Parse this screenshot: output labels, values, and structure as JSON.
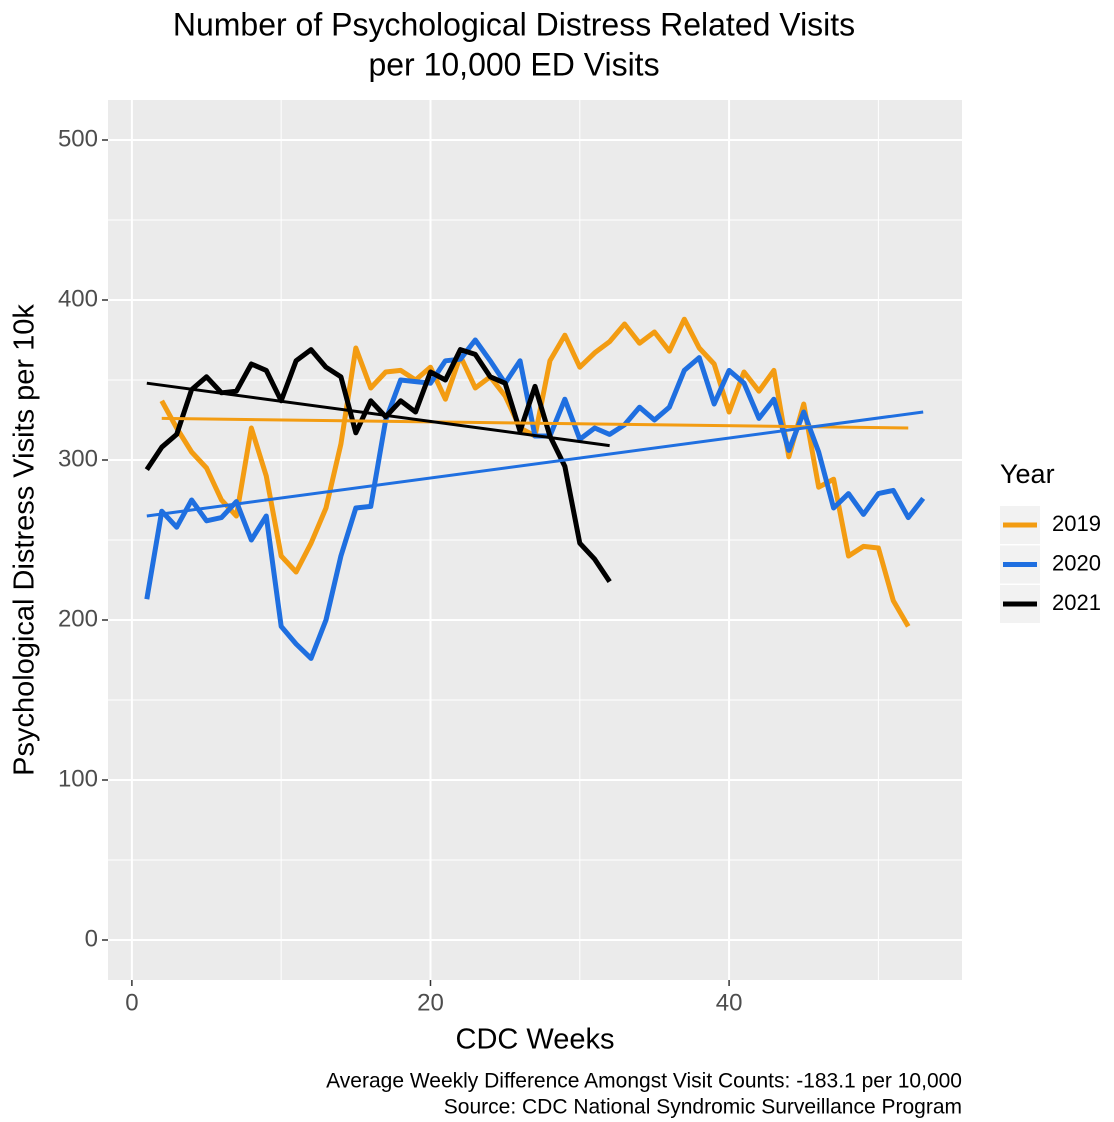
{
  "chart_data": {
    "type": "line",
    "title": [
      "Number of Psychological Distress Related Visits",
      "per 10,000 ED Visits"
    ],
    "x_label": "CDC Weeks",
    "y_label": "Psychological Distress Visits per 10k",
    "caption": [
      "Average Weekly Difference Amongst Visit Counts: -183.1 per 10,000",
      "Source: CDC National Syndromic Surveillance Program"
    ],
    "legend_title": "Year",
    "legend_position": "right",
    "grid": true,
    "xlim": [
      -1.6,
      55.6
    ],
    "xticks": [
      0,
      20,
      40
    ],
    "ylim": [
      -25,
      525
    ],
    "yticks": [
      0,
      100,
      200,
      300,
      400,
      500
    ],
    "x": [
      1,
      2,
      3,
      4,
      5,
      6,
      7,
      8,
      9,
      10,
      11,
      12,
      13,
      14,
      15,
      16,
      17,
      18,
      19,
      20,
      21,
      22,
      23,
      24,
      25,
      26,
      27,
      28,
      29,
      30,
      31,
      32,
      33,
      34,
      35,
      36,
      37,
      38,
      39,
      40,
      41,
      42,
      43,
      44,
      45,
      46,
      47,
      48,
      49,
      50,
      51,
      52,
      53
    ],
    "series": [
      {
        "name": "2019",
        "color": "#f39c12",
        "values": [
          null,
          337,
          320,
          305,
          295,
          275,
          265,
          320,
          290,
          240,
          230,
          248,
          270,
          310,
          370,
          345,
          355,
          356,
          350,
          358,
          338,
          365,
          345,
          352,
          340,
          320,
          315,
          362,
          378,
          358,
          367,
          374,
          385,
          373,
          380,
          368,
          388,
          370,
          360,
          330,
          355,
          343,
          356,
          302,
          335,
          283,
          288,
          240,
          246,
          245,
          212,
          196,
          null
        ],
        "trend": {
          "x": [
            2,
            52
          ],
          "values": [
            326,
            320
          ]
        }
      },
      {
        "name": "2020",
        "color": "#1f6fe0",
        "values": [
          213,
          268,
          258,
          275,
          262,
          264,
          274,
          250,
          265,
          196,
          185,
          176,
          200,
          240,
          270,
          271,
          325,
          350,
          349,
          348,
          362,
          363,
          375,
          362,
          348,
          362,
          315,
          315,
          338,
          313,
          320,
          316,
          322,
          333,
          325,
          333,
          356,
          364,
          335,
          356,
          348,
          326,
          338,
          306,
          330,
          305,
          270,
          279,
          266,
          279,
          281,
          264,
          276
        ],
        "trend": {
          "x": [
            1,
            53
          ],
          "values": [
            265,
            330
          ]
        }
      },
      {
        "name": "2021",
        "color": "#000000",
        "values": [
          294,
          308,
          316,
          344,
          352,
          342,
          343,
          360,
          356,
          337,
          362,
          369,
          358,
          352,
          317,
          337,
          327,
          337,
          330,
          355,
          350,
          369,
          366,
          352,
          348,
          318,
          346,
          315,
          296,
          248,
          238,
          224,
          null,
          null,
          null,
          null,
          null,
          null,
          null,
          null,
          null,
          null,
          null,
          null,
          null,
          null,
          null,
          null,
          null,
          null,
          null,
          null,
          null
        ],
        "trend": {
          "x": [
            1,
            32
          ],
          "values": [
            348,
            309
          ]
        }
      }
    ]
  }
}
